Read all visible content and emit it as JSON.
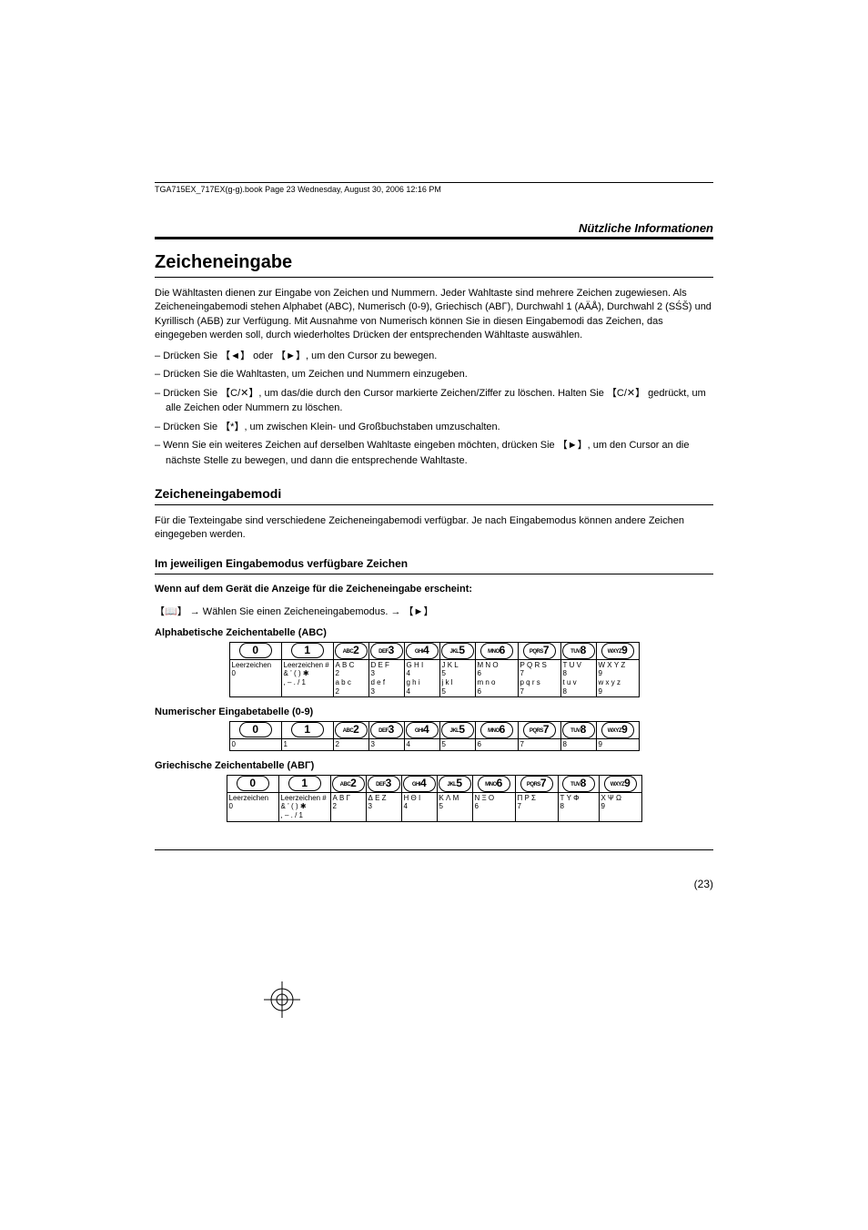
{
  "header": {
    "runner": "TGA715EX_717EX(g-g).book  Page 23  Wednesday, August 30, 2006  12:16 PM"
  },
  "section_label": "Nützliche Informationen",
  "h1": "Zeicheneingabe",
  "intro": "Die Wähltasten dienen zur Eingabe von Zeichen und Nummern. Jeder Wahltaste sind mehrere Zeichen zugewiesen. Als Zeicheneingabemodi stehen Alphabet (ABC), Numerisch (0-9), Griechisch (ΑΒΓ), Durchwahl 1 (AÄÅ), Durchwahl 2 (SŚŠ) und Kyrillisch (АБВ) zur Verfügung. Mit Ausnahme von Numerisch können Sie in diesen Eingabemodi das Zeichen, das eingegeben werden soll, durch wiederholtes Drücken der entsprechenden Wähltaste auswählen.",
  "bullets": [
    "Drücken Sie 【◄】 oder 【►】, um den Cursor zu bewegen.",
    "Drücken Sie die Wahltasten, um Zeichen und Nummern einzugeben.",
    "Drücken Sie 【C/✕】, um das/die durch den Cursor markierte Zeichen/Ziffer zu löschen. Halten Sie 【C/✕】 gedrückt, um alle Zeichen oder Nummern zu löschen.",
    "Drücken Sie 【*】, um zwischen Klein- und Großbuchstaben umzuschalten.",
    "Wenn Sie ein weiteres Zeichen auf derselben Wahltaste eingeben möchten, drücken Sie 【►】, um den Cursor an die nächste Stelle zu bewegen, und dann die entsprechende Wahltaste."
  ],
  "h2": "Zeicheneingabemodi",
  "modi_text": "Für die Texteingabe sind verschiedene Zeicheneingabemodi verfügbar. Je nach Eingabemodus können andere Zeichen eingegeben werden.",
  "h3": "Im jeweiligen Eingabemodus verfügbare Zeichen",
  "when_line": "Wenn auf dem Gerät die Anzeige für die Zeicheneingabe erscheint:",
  "select_line": "【📖】 → Wählen Sie einen Zeicheneingabemodus. → 【►】",
  "key_labels": {
    "0": "0",
    "1": "1",
    "2": "ABC 2",
    "3": "DEF 3",
    "4": "GHI 4",
    "5": "JKL 5",
    "6": "MNO 6",
    "7": "PQRS 7",
    "8": "TUV 8",
    "9": "WXYZ 9"
  },
  "tbl_abc": {
    "title": "Alphabetische Zeichentabelle (ABC)",
    "rows": [
      [
        "Leerzeichen\n0",
        "Leerzeichen #\n& ’ ( ) ✱\n, – . / 1",
        "A B C\n2\na b c\n2",
        "D E F\n3\nd e f\n3",
        "G H I\n4\ng h i\n4",
        "J K L\n5\nj k l\n5",
        "M N O\n6\nm n o\n6",
        "P Q R S\n7\np q r s\n7",
        "T U V\n8\nt u v\n8",
        "W X Y Z\n9\nw x y z\n9"
      ]
    ]
  },
  "tbl_num": {
    "title": "Numerischer Eingabetabelle (0-9)",
    "rows": [
      [
        "0",
        "1",
        "2",
        "3",
        "4",
        "5",
        "6",
        "7",
        "8",
        "9"
      ]
    ]
  },
  "tbl_greek": {
    "title": "Griechische Zeichentabelle (ΑΒΓ)",
    "rows": [
      [
        "Leerzeichen\n0",
        "Leerzeichen #\n& ’ ( ) ✱\n, – . / 1",
        "Α Β Γ\n2",
        "Δ Ε Ζ\n3",
        "Η Θ Ι\n4",
        "Κ Λ Μ\n5",
        "Ν Ξ Ο\n6",
        "Π Ρ Σ\n7",
        "Τ Υ Φ\n8",
        "Χ Ψ Ω\n9"
      ]
    ]
  },
  "page_number": "(23)",
  "col_widths_full": [
    56,
    56,
    38,
    38,
    38,
    38,
    46,
    46,
    38,
    46
  ],
  "col_widths_greek": [
    56,
    56,
    38,
    38,
    38,
    38,
    46,
    46,
    44,
    46
  ]
}
